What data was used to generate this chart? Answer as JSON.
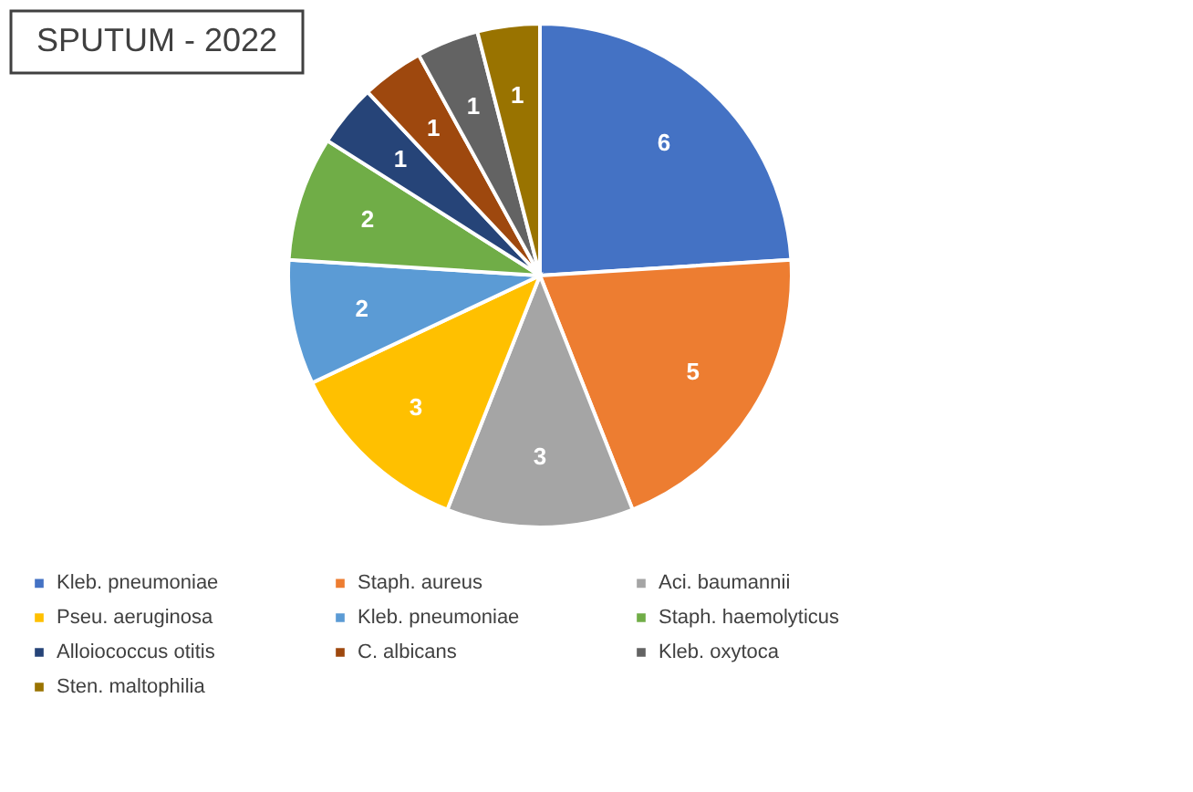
{
  "chart_data": {
    "type": "pie",
    "title": "SPUTUM - 2022",
    "categories": [
      "Kleb. pneumoniae",
      "Staph. aureus",
      "Aci. baumannii",
      "Pseu. aeruginosa",
      "Kleb. pneumoniae",
      "Staph. haemolyticus",
      "Alloiococcus otitis",
      "C. albicans",
      "Kleb. oxytoca",
      "Sten. maltophilia"
    ],
    "values": [
      6,
      5,
      3,
      3,
      2,
      2,
      1,
      1,
      1,
      1
    ],
    "colors": [
      "#4472c4",
      "#ed7d31",
      "#a5a5a5",
      "#ffc000",
      "#5b9bd5",
      "#70ad47",
      "#264478",
      "#9e480e",
      "#636363",
      "#997300"
    ],
    "data_labels": true,
    "legend": "bottom"
  }
}
